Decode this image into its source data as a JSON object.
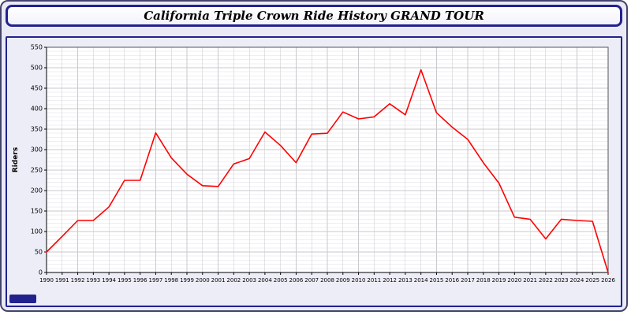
{
  "window": {
    "title_bar_text": "California Triple Crown Ride History GRAND TOUR"
  },
  "colors": {
    "accent_border": "#22228e",
    "line": "#ff0000",
    "page_bg": "#eaeaf6",
    "plot_bg": "#ffffff",
    "grid_major": "#c9c9ce",
    "grid_minor": "#efeff3",
    "axis": "#555555",
    "tick_text": "#000000"
  },
  "chart_data": {
    "type": "line",
    "title": "California Triple Crown Ride History GRAND TOUR",
    "xlabel": "",
    "ylabel": "Riders",
    "ylim": [
      0,
      550
    ],
    "yticks": [
      0,
      50,
      100,
      150,
      200,
      250,
      300,
      350,
      400,
      450,
      500,
      550
    ],
    "grid": true,
    "legend": false,
    "line_color": "#ff0000",
    "x": [
      1990,
      1991,
      1992,
      1993,
      1994,
      1995,
      1996,
      1997,
      1998,
      1999,
      2000,
      2001,
      2002,
      2003,
      2004,
      2005,
      2006,
      2007,
      2008,
      2009,
      2010,
      2011,
      2012,
      2013,
      2014,
      2015,
      2016,
      2017,
      2018,
      2019,
      2020,
      2021,
      2022,
      2023,
      2024,
      2025,
      2026
    ],
    "series": [
      {
        "name": "Riders",
        "values": [
          50,
          88,
          127,
          127,
          160,
          225,
          225,
          341,
          280,
          240,
          212,
          210,
          265,
          278,
          343,
          310,
          268,
          338,
          340,
          392,
          375,
          380,
          412,
          385,
          495,
          390,
          355,
          325,
          268,
          218,
          135,
          130,
          82,
          130,
          127,
          125,
          0
        ]
      }
    ]
  }
}
